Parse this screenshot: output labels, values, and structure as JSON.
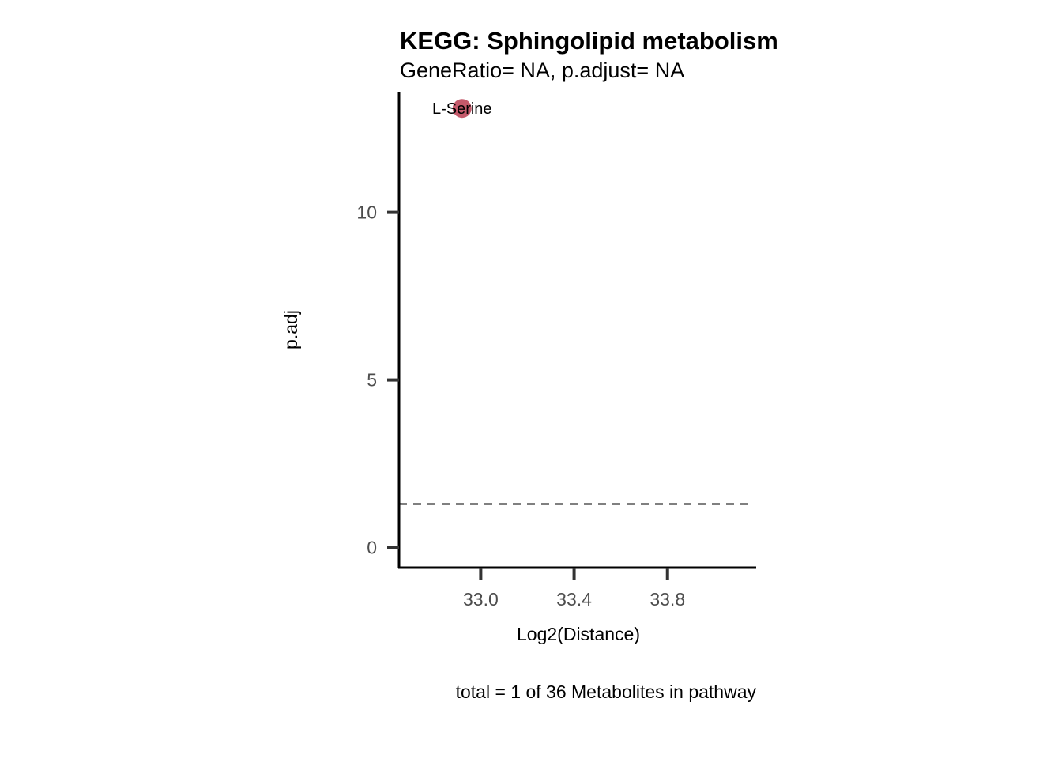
{
  "chart_data": {
    "type": "scatter",
    "title": "KEGG: Sphingolipid metabolism",
    "subtitle": "GeneRatio= NA, p.adjust= NA",
    "xlabel": "Log2(Distance)",
    "ylabel": "p.adj",
    "caption": "total = 1 of 36 Metabolites in pathway",
    "xlim": [
      32.65,
      34.18
    ],
    "ylim": [
      -0.6,
      13.6
    ],
    "x_ticks": [
      33.0,
      33.4,
      33.8
    ],
    "x_tick_labels": [
      "33.0",
      "33.4",
      "33.8"
    ],
    "y_ticks": [
      0,
      5,
      10
    ],
    "y_tick_labels": [
      "0",
      "5",
      "10"
    ],
    "threshold_line": {
      "y": 1.3,
      "style": "dashed"
    },
    "points": [
      {
        "label": "L-Serine",
        "x": 32.92,
        "y": 13.1,
        "color": "#c45a6b"
      }
    ],
    "grid": false,
    "legend": "none"
  }
}
